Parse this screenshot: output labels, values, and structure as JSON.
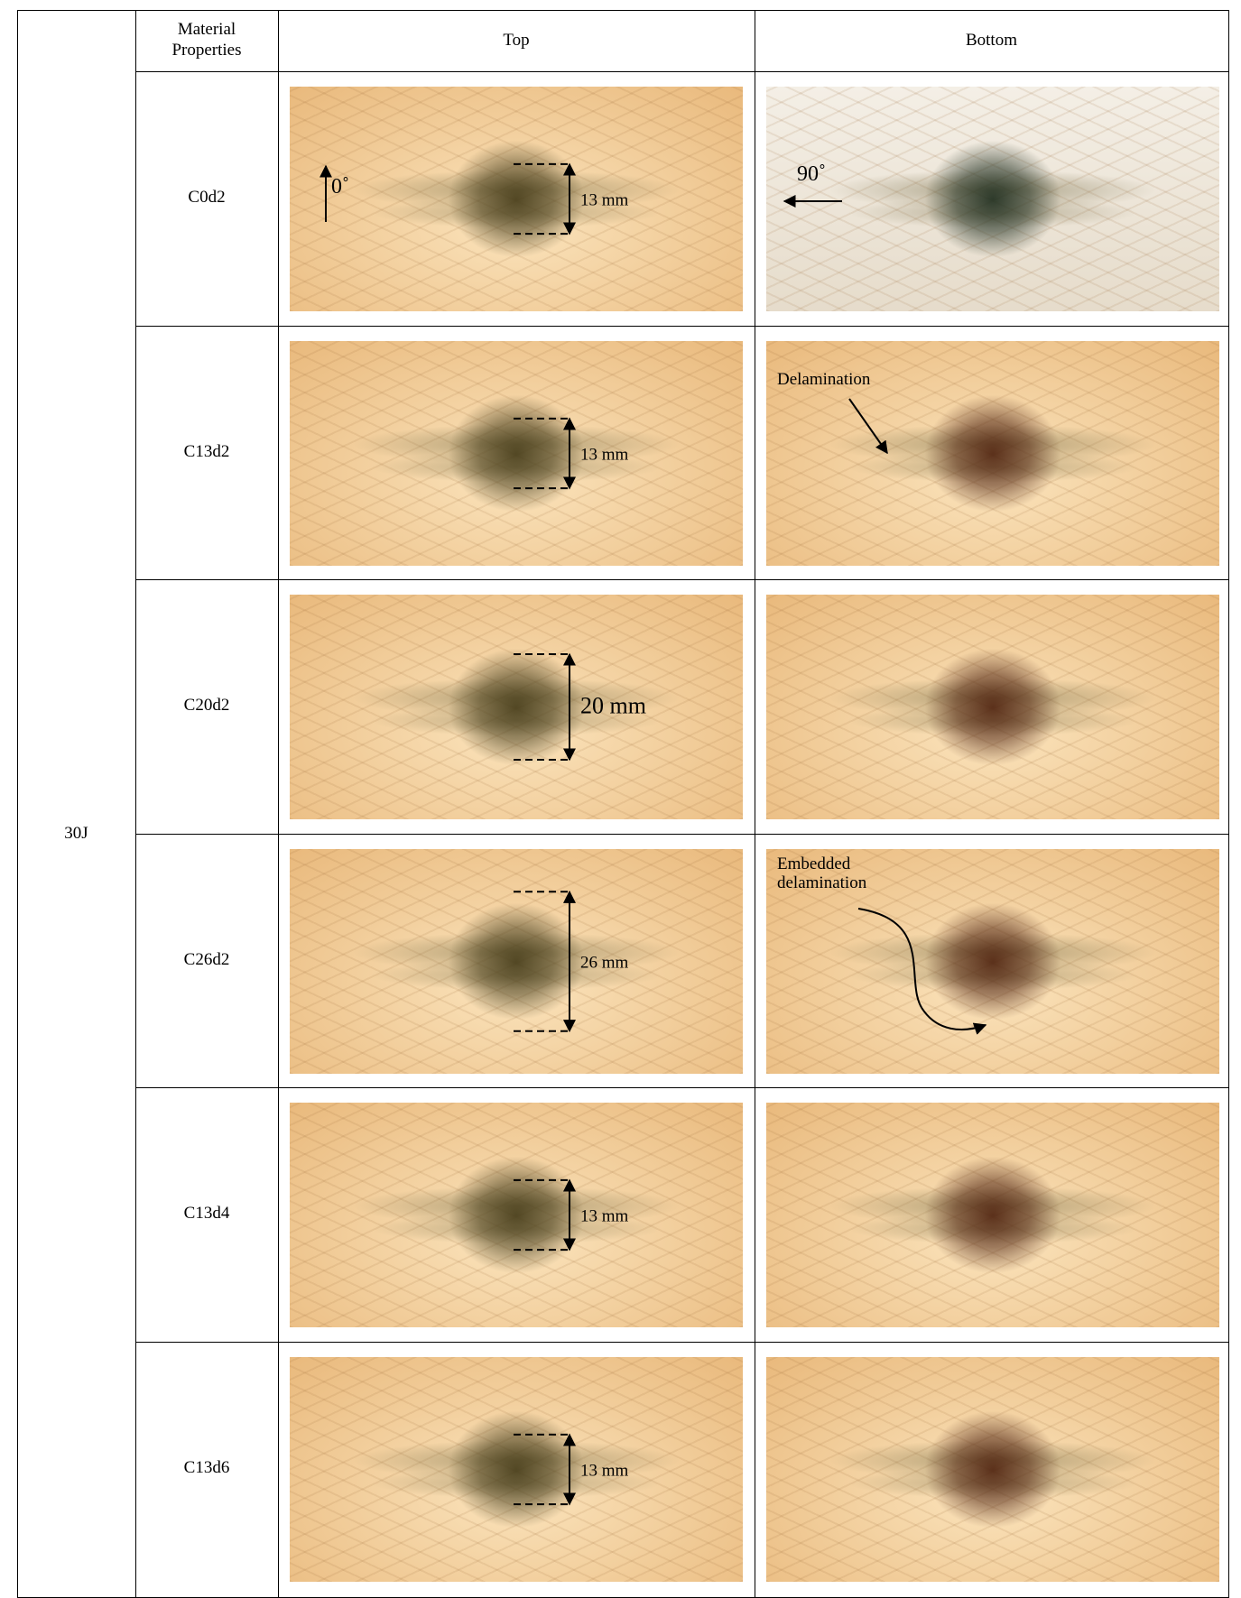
{
  "table": {
    "row_header": "30J",
    "header": [
      "Material Properties",
      "Top",
      "Bottom"
    ],
    "rows": [
      {
        "material": "C0d2",
        "top": {
          "label": "0˚",
          "dimension": "13 mm"
        },
        "bottom": {
          "label": "90˚"
        }
      },
      {
        "material": "C13d2",
        "top": {
          "dimension": "13 mm"
        },
        "bottom": {
          "label": "Delamination"
        }
      },
      {
        "material": "C20d2",
        "top": {
          "dimension": "20 mm"
        },
        "bottom": {}
      },
      {
        "material": "C26d2",
        "top": {
          "dimension": "26 mm"
        },
        "bottom": {
          "label": "Embedded delamination"
        }
      },
      {
        "material": "C13d4",
        "top": {
          "dimension": "13 mm"
        },
        "bottom": {}
      },
      {
        "material": "C13d6",
        "top": {
          "dimension": "13 mm"
        },
        "bottom": {}
      }
    ]
  }
}
